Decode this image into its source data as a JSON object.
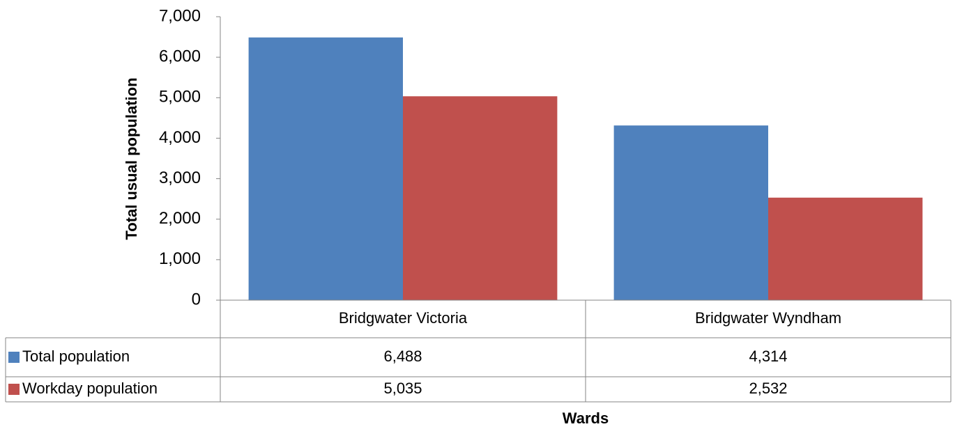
{
  "chart_data": {
    "type": "bar",
    "categories": [
      "Bridgwater Victoria",
      "Bridgwater Wyndham"
    ],
    "series": [
      {
        "name": "Total population",
        "color": "#4f81bd",
        "values": [
          6488,
          4314
        ],
        "value_labels": [
          "6,488",
          "4,314"
        ]
      },
      {
        "name": "Workday population",
        "color": "#c0504d",
        "values": [
          5035,
          2532
        ],
        "value_labels": [
          "5,035",
          "2,532"
        ]
      }
    ],
    "x_label": "Wards",
    "y_label": "Total usual population",
    "ylim": [
      0,
      7000
    ],
    "yticks": [
      0,
      {
        "value": 1000,
        "label": "1,000"
      },
      {
        "value": 2000,
        "label": "2,000"
      },
      {
        "value": 3000,
        "label": "3,000"
      },
      {
        "value": 4000,
        "label": "4,000"
      },
      {
        "value": 5000,
        "label": "5,000"
      },
      {
        "value": 6000,
        "label": "6,000"
      },
      {
        "value": 7000,
        "label": "7,000"
      }
    ],
    "grid": false,
    "data_table": true
  }
}
